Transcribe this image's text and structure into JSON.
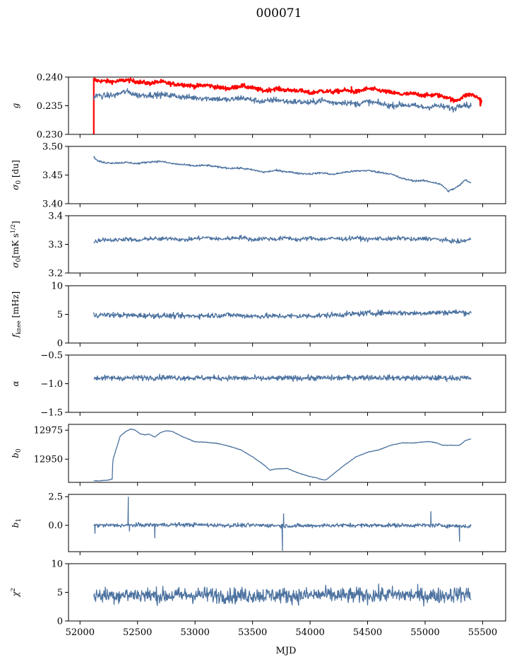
{
  "chart_data": {
    "title": "000071",
    "xlabel": "MJD",
    "xlim": [
      51900,
      55700
    ],
    "xticks": [
      52000,
      52500,
      53000,
      53500,
      54000,
      54500,
      55000,
      55500
    ],
    "grid": false,
    "panels": [
      {
        "id": "g",
        "type": "line",
        "ylabel_html": "g",
        "ylim": [
          0.23,
          0.24
        ],
        "yticks": [
          0.23,
          0.235,
          0.24
        ],
        "ytick_labels": [
          "0.230",
          "0.235",
          "0.240"
        ],
        "series": [
          {
            "color": "#ff0000",
            "width": 2.2,
            "noise": 0.00035,
            "clip": true,
            "x": [
              52120,
              52130,
              52140,
              52200,
              52300,
              52400,
              52500,
              52600,
              52700,
              52800,
              52900,
              53000,
              53100,
              53200,
              53300,
              53400,
              53500,
              53600,
              53700,
              53800,
              53900,
              54000,
              54100,
              54200,
              54300,
              54400,
              54500,
              54600,
              54700,
              54800,
              54900,
              55000,
              55100,
              55150,
              55200,
              55250,
              55300,
              55350,
              55400,
              55450,
              55480
            ],
            "y": [
              0.2395,
              0.2395,
              0.2394,
              0.2393,
              0.2392,
              0.2395,
              0.2392,
              0.2389,
              0.2392,
              0.2388,
              0.2387,
              0.2384,
              0.2386,
              0.2382,
              0.238,
              0.2385,
              0.2381,
              0.2376,
              0.238,
              0.2377,
              0.2377,
              0.2372,
              0.2376,
              0.2374,
              0.2377,
              0.2374,
              0.238,
              0.2377,
              0.2373,
              0.237,
              0.2371,
              0.2368,
              0.2369,
              0.2366,
              0.2365,
              0.2358,
              0.2362,
              0.2368,
              0.237,
              0.2365,
              0.2362
            ],
            "spikes": [
              [
                52120,
                0.2295
              ],
              [
                52125,
                0.2398
              ],
              [
                52130,
                0.2396
              ],
              [
                54360,
                0.2383
              ],
              [
                54360,
                0.2375
              ],
              [
                55480,
                0.235
              ],
              [
                55490,
                0.2358
              ]
            ]
          },
          {
            "color": "#4c72a0",
            "width": 1.3,
            "noise": 0.0005,
            "x": [
              52120,
              52150,
              52200,
              52250,
              52300,
              52350,
              52400,
              52450,
              52500,
              52600,
              52700,
              52800,
              52900,
              53000,
              53100,
              53200,
              53300,
              53400,
              53500,
              53600,
              53700,
              53800,
              53900,
              54000,
              54100,
              54200,
              54300,
              54400,
              54500,
              54600,
              54700,
              54800,
              54900,
              55000,
              55100,
              55200,
              55250,
              55300,
              55350,
              55400
            ],
            "y": [
              0.2365,
              0.2368,
              0.2367,
              0.2368,
              0.2368,
              0.2372,
              0.2375,
              0.2372,
              0.2368,
              0.2369,
              0.2369,
              0.2368,
              0.2365,
              0.2364,
              0.2363,
              0.2362,
              0.236,
              0.2364,
              0.236,
              0.2357,
              0.2361,
              0.2357,
              0.2357,
              0.2355,
              0.236,
              0.2355,
              0.2356,
              0.2353,
              0.2357,
              0.2354,
              0.235,
              0.2352,
              0.235,
              0.2347,
              0.235,
              0.2347,
              0.2344,
              0.2352,
              0.2352,
              0.2349
            ]
          }
        ]
      },
      {
        "id": "sigma0-du",
        "type": "line",
        "ylabel_html": "σ₀ [du]",
        "ylim": [
          3.4,
          3.5
        ],
        "yticks": [
          3.4,
          3.45,
          3.5
        ],
        "ytick_labels": [
          "3.40",
          "3.45",
          "3.50"
        ],
        "series": [
          {
            "color": "#4c72a0",
            "width": 1.3,
            "noise": 0.0016,
            "x": [
              52120,
              52150,
              52200,
              52300,
              52400,
              52500,
              52600,
              52700,
              52800,
              52900,
              53000,
              53100,
              53200,
              53300,
              53400,
              53500,
              53600,
              53700,
              53800,
              53900,
              54000,
              54100,
              54200,
              54300,
              54400,
              54500,
              54600,
              54700,
              54800,
              54900,
              55000,
              55100,
              55150,
              55200,
              55250,
              55300,
              55350,
              55400
            ],
            "y": [
              3.482,
              3.475,
              3.472,
              3.471,
              3.472,
              3.47,
              3.473,
              3.474,
              3.47,
              3.468,
              3.466,
              3.467,
              3.464,
              3.462,
              3.462,
              3.459,
              3.455,
              3.458,
              3.456,
              3.453,
              3.452,
              3.454,
              3.451,
              3.455,
              3.457,
              3.458,
              3.455,
              3.452,
              3.444,
              3.44,
              3.44,
              3.436,
              3.432,
              3.422,
              3.426,
              3.432,
              3.442,
              3.436
            ]
          }
        ]
      },
      {
        "id": "sigma0-mk",
        "type": "line",
        "ylabel_html": "σ₀[mK s^1/2]",
        "ylim": [
          3.2,
          3.4
        ],
        "yticks": [
          3.2,
          3.3,
          3.4
        ],
        "ytick_labels": [
          "3.2",
          "3.3",
          "3.4"
        ],
        "series": [
          {
            "color": "#4c72a0",
            "width": 1.3,
            "noise": 0.007,
            "x": [
              52120,
              52200,
              52300,
              52400,
              52500,
              52600,
              52700,
              52800,
              52900,
              53000,
              53100,
              53200,
              53300,
              53400,
              53500,
              53600,
              53700,
              53800,
              53900,
              54000,
              54100,
              54200,
              54300,
              54400,
              54500,
              54600,
              54700,
              54800,
              54900,
              55000,
              55100,
              55200,
              55300,
              55400
            ],
            "y": [
              3.308,
              3.318,
              3.314,
              3.32,
              3.312,
              3.321,
              3.318,
              3.322,
              3.315,
              3.32,
              3.324,
              3.318,
              3.321,
              3.325,
              3.316,
              3.321,
              3.318,
              3.323,
              3.316,
              3.322,
              3.318,
              3.321,
              3.319,
              3.323,
              3.317,
              3.321,
              3.318,
              3.323,
              3.316,
              3.321,
              3.318,
              3.313,
              3.309,
              3.318
            ]
          }
        ]
      },
      {
        "id": "fknee",
        "type": "line",
        "ylabel_html": "f_knee [mHz]",
        "ylim": [
          0,
          10
        ],
        "yticks": [
          0,
          5,
          10
        ],
        "ytick_labels": [
          "0",
          "5",
          "10"
        ],
        "series": [
          {
            "color": "#4c72a0",
            "width": 1.3,
            "noise": 0.45,
            "x": [
              52120,
              52300,
              52500,
              52700,
              52900,
              53100,
              53300,
              53500,
              53700,
              53900,
              54100,
              54300,
              54500,
              54700,
              54900,
              55100,
              55300,
              55400
            ],
            "y": [
              4.9,
              4.9,
              4.8,
              4.8,
              4.7,
              4.8,
              4.9,
              4.7,
              4.7,
              4.7,
              4.8,
              5.0,
              5.2,
              5.3,
              5.2,
              5.3,
              5.4,
              5.2
            ]
          }
        ]
      },
      {
        "id": "alpha",
        "type": "line",
        "ylabel_html": "α",
        "ylim": [
          -1.5,
          -0.5
        ],
        "yticks": [
          -1.5,
          -1.0,
          -0.5
        ],
        "ytick_labels": [
          "−1.5",
          "−1.0",
          "−0.5"
        ],
        "series": [
          {
            "color": "#4c72a0",
            "width": 1.3,
            "noise": 0.045,
            "x": [
              52120,
              52400,
              52700,
              53000,
              53300,
              53600,
              53900,
              54200,
              54500,
              54800,
              55100,
              55400
            ],
            "y": [
              -0.9,
              -0.9,
              -0.89,
              -0.9,
              -0.9,
              -0.91,
              -0.9,
              -0.9,
              -0.89,
              -0.9,
              -0.9,
              -0.9
            ]
          }
        ]
      },
      {
        "id": "b0",
        "type": "line",
        "ylabel_html": "b₀",
        "ylim": [
          12930,
          12980
        ],
        "yticks": [
          12950,
          12975
        ],
        "ytick_labels": [
          "12950",
          "12975"
        ],
        "series": [
          {
            "color": "#4c72a0",
            "width": 1.3,
            "noise": 0.2,
            "x": [
              52120,
              52150,
              52200,
              52250,
              52280,
              52285,
              52350,
              52400,
              52440,
              52480,
              52520,
              52560,
              52600,
              52650,
              52700,
              52750,
              52800,
              52900,
              53000,
              53100,
              53200,
              53300,
              53400,
              53500,
              53600,
              53650,
              53700,
              53800,
              53900,
              54000,
              54050,
              54100,
              54130,
              54150,
              54200,
              54300,
              54400,
              54500,
              54600,
              54700,
              54800,
              54900,
              55000,
              55050,
              55100,
              55150,
              55200,
              55250,
              55300,
              55350,
              55400
            ],
            "y": [
              12931.5,
              12931.2,
              12931.6,
              12932.0,
              12933.0,
              12949.0,
              12970.0,
              12974.0,
              12976.0,
              12975.0,
              12972.0,
              12971.0,
              12971.5,
              12969.0,
              12973.0,
              12974.5,
              12974.0,
              12969.0,
              12965.0,
              12964.5,
              12963.5,
              12961.0,
              12958.0,
              12952.0,
              12945.0,
              12940.5,
              12941.5,
              12942.0,
              12938.0,
              12935.0,
              12934.0,
              12932.5,
              12932.0,
              12933.0,
              12937.0,
              12945.0,
              12952.0,
              12956.0,
              12958.0,
              12962.0,
              12964.0,
              12964.0,
              12965.0,
              12965.0,
              12964.0,
              12962.0,
              12962.0,
              12962.0,
              12962.0,
              12966.0,
              12967.5
            ]
          }
        ]
      },
      {
        "id": "b1",
        "type": "line",
        "ylabel_html": "b₁",
        "ylim": [
          -2.3,
          2.7
        ],
        "yticks": [
          0.0,
          2.5
        ],
        "ytick_labels": [
          "0.0",
          "2.5"
        ],
        "series": [
          {
            "color": "#4c72a0",
            "width": 1.3,
            "noise": 0.17,
            "x": [
              52120,
              52400,
              52700,
              53000,
              53300,
              53600,
              53900,
              54200,
              54500,
              54800,
              55100,
              55400
            ],
            "y": [
              0.0,
              0.0,
              0.05,
              0.05,
              0.0,
              0.0,
              -0.05,
              0.0,
              0.0,
              0.0,
              0.0,
              -0.1
            ],
            "spikes": [
              [
                52420,
                2.45
              ],
              [
                52430,
                -0.5
              ],
              [
                53760,
                -2.2
              ],
              [
                53770,
                1.0
              ],
              [
                55050,
                1.2
              ],
              [
                55300,
                -1.4
              ],
              [
                52650,
                -1.1
              ],
              [
                52130,
                -0.7
              ]
            ]
          }
        ]
      },
      {
        "id": "chi2",
        "type": "line",
        "ylabel_html": "χ²",
        "ylim": [
          0,
          10
        ],
        "yticks": [
          0,
          5,
          10
        ],
        "ytick_labels": [
          "0",
          "5",
          "10"
        ],
        "series": [
          {
            "color": "#4c72a0",
            "width": 1.3,
            "noise": 1.3,
            "x": [
              52120,
              52300,
              52500,
              52700,
              52900,
              53100,
              53300,
              53500,
              53700,
              53900,
              54100,
              54300,
              54500,
              54700,
              54900,
              55100,
              55300,
              55400
            ],
            "y": [
              4.5,
              4.5,
              4.6,
              4.4,
              4.5,
              4.6,
              4.4,
              4.5,
              4.5,
              4.4,
              4.6,
              4.4,
              4.5,
              4.6,
              4.5,
              4.4,
              4.7,
              4.6
            ]
          }
        ]
      }
    ]
  }
}
